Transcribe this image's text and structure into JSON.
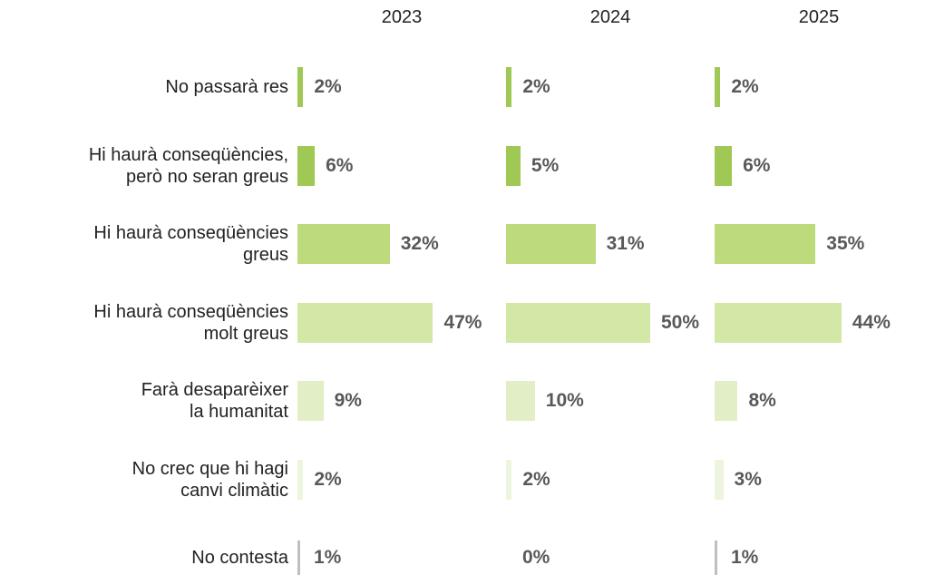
{
  "chart_data": {
    "type": "bar",
    "orientation": "horizontal",
    "categories": [
      "No passarà res",
      "Hi haurà conseqüències,\nperò no seran greus",
      "Hi haurà conseqüències\ngreus",
      "Hi haurà conseqüències\nmolt greus",
      "Farà desaparèixer\nla humanitat",
      "No crec que hi hagi\ncanvi climàtic",
      "No contesta"
    ],
    "colors": [
      "#9fc854",
      "#9fc854",
      "#bddb7c",
      "#d3e7a6",
      "#e1eec6",
      "#eef5df",
      "#bfbfbf"
    ],
    "series": [
      {
        "name": "2023",
        "values": [
          2,
          6,
          32,
          47,
          9,
          2,
          1
        ],
        "value_labels": [
          "2%",
          "6%",
          "32%",
          "47%",
          "9%",
          "2%",
          "1%"
        ]
      },
      {
        "name": "2024",
        "values": [
          2,
          5,
          31,
          50,
          10,
          2,
          0
        ],
        "value_labels": [
          "2%",
          "5%",
          "31%",
          "50%",
          "10%",
          "2%",
          "0%"
        ]
      },
      {
        "name": "2025",
        "values": [
          2,
          6,
          35,
          44,
          8,
          3,
          1
        ],
        "value_labels": [
          "2%",
          "6%",
          "35%",
          "44%",
          "8%",
          "3%",
          "1%"
        ]
      }
    ]
  }
}
